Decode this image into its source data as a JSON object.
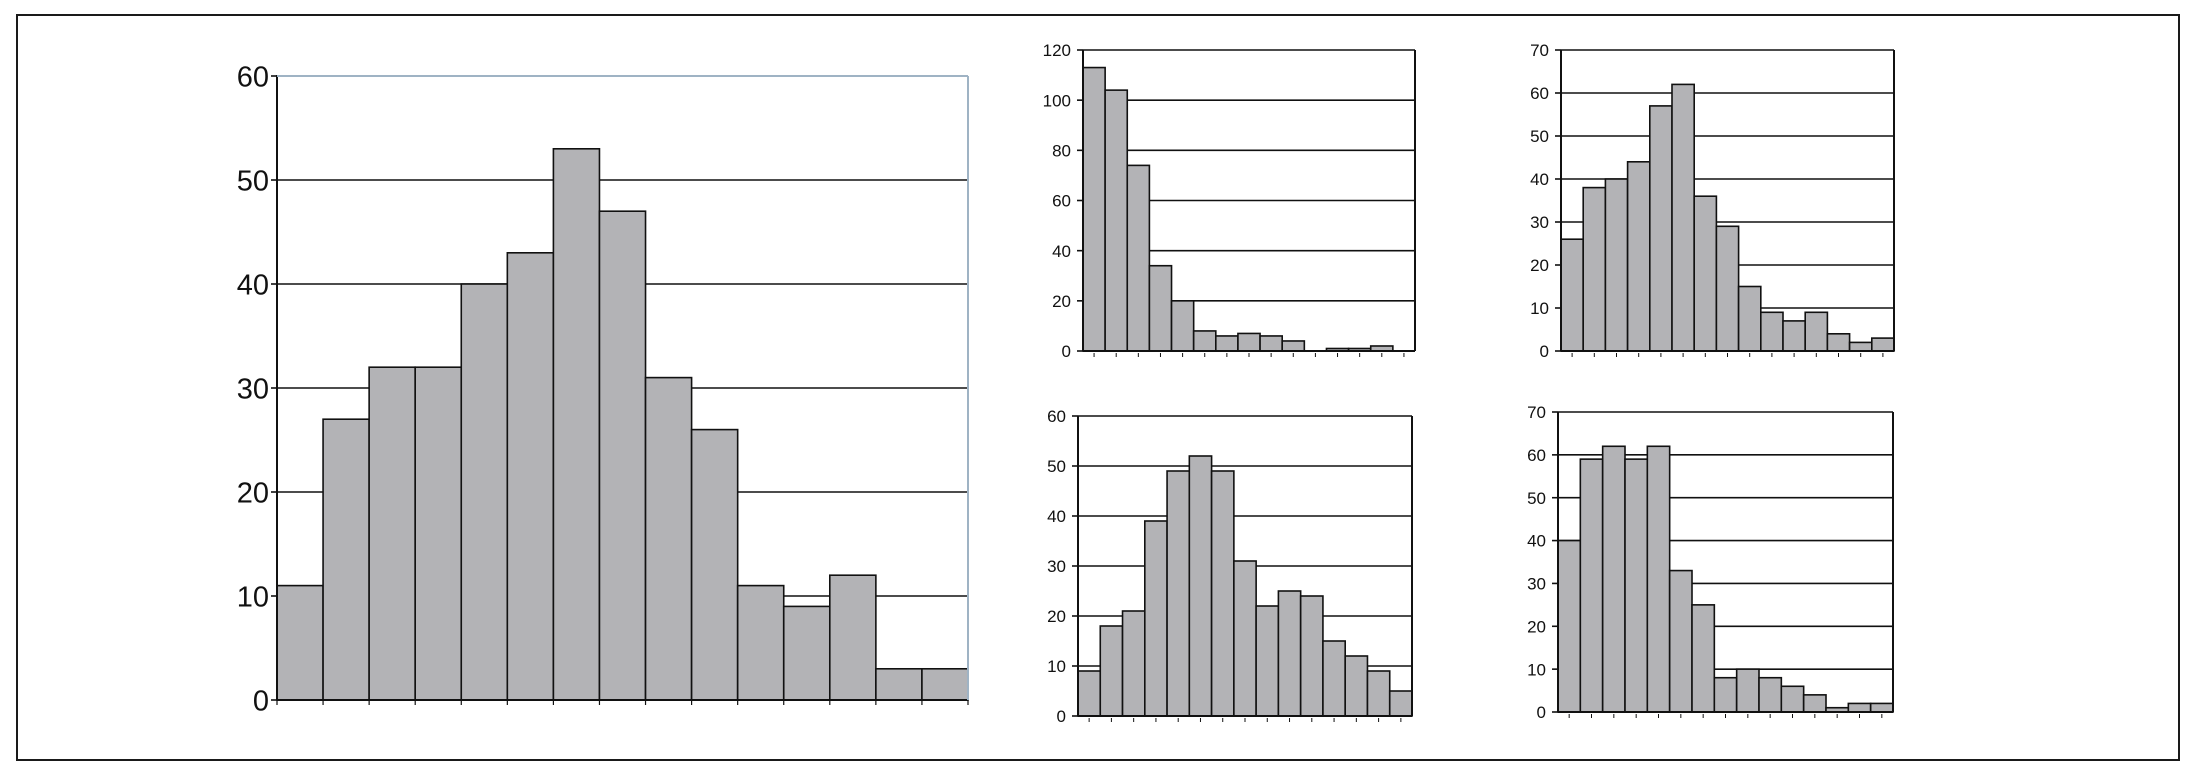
{
  "style": {
    "bar_fill": "#b3b3b6",
    "bar_stroke": "#111111",
    "grid_color": "#111111",
    "frame_color": "#1a1a1a",
    "plot_right_border_color": "#9fb3c4"
  },
  "chart_data": [
    {
      "id": "chart-main",
      "type": "bar",
      "grid": true,
      "ylim": [
        0,
        60
      ],
      "yticks": [
        "0",
        "10",
        "20",
        "30",
        "40",
        "50",
        "60"
      ],
      "values": [
        11,
        27,
        32,
        32,
        40,
        43,
        53,
        47,
        31,
        26,
        11,
        9,
        12,
        3,
        3
      ]
    },
    {
      "id": "chart-top-middle",
      "type": "bar",
      "grid": true,
      "ylim": [
        0,
        120
      ],
      "yticks": [
        "0",
        "20",
        "40",
        "60",
        "80",
        "100",
        "120"
      ],
      "values": [
        113,
        104,
        74,
        34,
        20,
        8,
        6,
        7,
        6,
        4,
        0,
        1,
        1,
        2,
        0
      ]
    },
    {
      "id": "chart-top-right",
      "type": "bar",
      "grid": true,
      "ylim": [
        0,
        70
      ],
      "yticks": [
        "0",
        "10",
        "20",
        "30",
        "40",
        "50",
        "60",
        "70"
      ],
      "values": [
        26,
        38,
        40,
        44,
        57,
        62,
        36,
        29,
        15,
        9,
        7,
        9,
        4,
        2,
        3
      ]
    },
    {
      "id": "chart-bottom-middle",
      "type": "bar",
      "grid": true,
      "ylim": [
        0,
        60
      ],
      "yticks": [
        "0",
        "10",
        "20",
        "30",
        "40",
        "50",
        "60"
      ],
      "values": [
        9,
        18,
        21,
        39,
        49,
        52,
        49,
        31,
        22,
        25,
        24,
        15,
        12,
        9,
        5
      ]
    },
    {
      "id": "chart-bottom-right",
      "type": "bar",
      "grid": true,
      "ylim": [
        0,
        70
      ],
      "yticks": [
        "0",
        "10",
        "20",
        "30",
        "40",
        "50",
        "60",
        "70"
      ],
      "values": [
        40,
        59,
        62,
        59,
        62,
        33,
        25,
        8,
        10,
        8,
        6,
        4,
        1,
        2,
        2
      ]
    }
  ]
}
